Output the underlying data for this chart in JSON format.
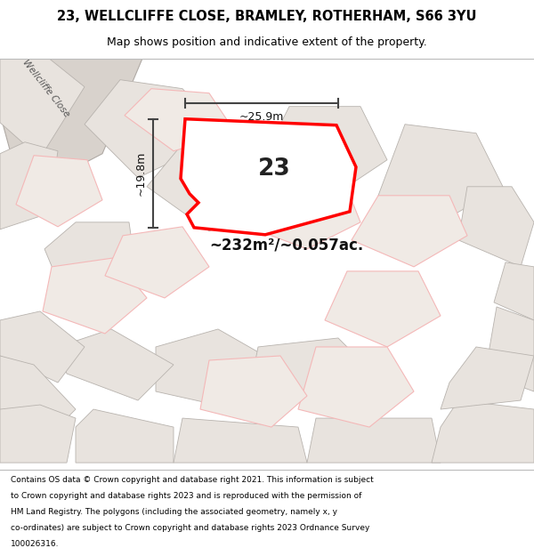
{
  "title_line1": "23, WELLCLIFFE CLOSE, BRAMLEY, ROTHERHAM, S66 3YU",
  "title_line2": "Map shows position and indicative extent of the property.",
  "area_label": "~232m²/~0.057ac.",
  "number_label": "23",
  "dim_height": "~19.8m",
  "dim_width": "~25.9m",
  "road_label": "Wellcliffe Close",
  "footer_lines": [
    "Contains OS data © Crown copyright and database right 2021. This information is subject",
    "to Crown copyright and database rights 2023 and is reproduced with the permission of",
    "HM Land Registry. The polygons (including the associated geometry, namely x, y",
    "co-ordinates) are subject to Crown copyright and database rights 2023 Ordnance Survey",
    "100026316."
  ],
  "map_bg": "#ede8e3",
  "plot_fill": "#ffffff",
  "plot_stroke": "#ff0000",
  "minor_line_color": "#f4b8b8",
  "dim_line_color": "#444444",
  "title_bg": "#ffffff",
  "footer_bg": "#ffffff"
}
